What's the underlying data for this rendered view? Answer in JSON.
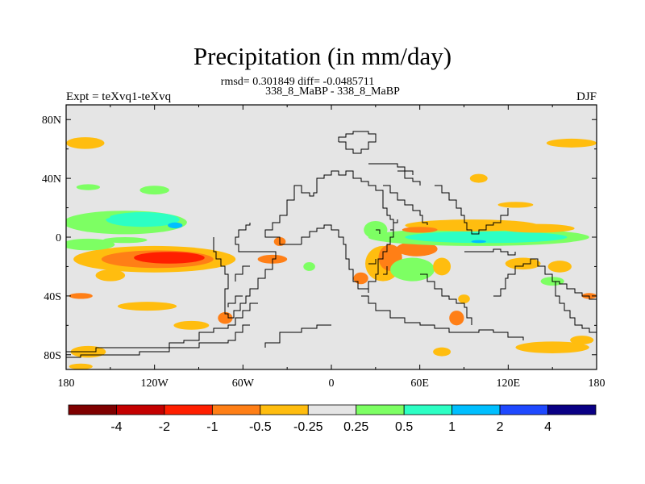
{
  "chart_data": {
    "type": "heatmap",
    "title": "Precipitation (in mm/day)",
    "stats_line": "rmsd= 0.301849 diff= -0.0485711",
    "runs_line": "338_8_MaBP - 338_8_MaBP",
    "left_label": "Expt = teXvq1-teXvq",
    "right_label": "DJF",
    "xlim": [
      -180,
      180
    ],
    "ylim": [
      -90,
      90
    ],
    "x_ticks": [
      {
        "value": -180,
        "label": "180"
      },
      {
        "value": -120,
        "label": "120W"
      },
      {
        "value": -60,
        "label": "60W"
      },
      {
        "value": 0,
        "label": "0"
      },
      {
        "value": 60,
        "label": "60E"
      },
      {
        "value": 120,
        "label": "120E"
      },
      {
        "value": 180,
        "label": "180"
      }
    ],
    "y_ticks": [
      {
        "value": 80,
        "label": "80N"
      },
      {
        "value": 40,
        "label": "40N"
      },
      {
        "value": 0,
        "label": "0"
      },
      {
        "value": -40,
        "label": "40S"
      },
      {
        "value": -80,
        "label": "80S"
      }
    ],
    "colorbar": {
      "colors": [
        "#7f0000",
        "#c40000",
        "#ff1f00",
        "#ff7f16",
        "#ffbd0f",
        "#e5e5e5",
        "#7dff63",
        "#2dffc4",
        "#00bfff",
        "#1f49ff",
        "#0a0085"
      ],
      "labels": [
        "-4",
        "-2",
        "-1",
        "-0.5",
        "-0.25",
        "0.25",
        "0.5",
        "1",
        "2",
        "4"
      ]
    },
    "background_color": "#e5e5e5",
    "anomaly_patches": [
      {
        "lon": -167,
        "lat": 64,
        "rx": 13,
        "ry": 4,
        "cls": 4
      },
      {
        "lon": 163,
        "lat": 64,
        "rx": 17,
        "ry": 3,
        "cls": 4
      },
      {
        "lon": -165,
        "lat": 34,
        "rx": 8,
        "ry": 2,
        "cls": 6
      },
      {
        "lon": -120,
        "lat": 32,
        "rx": 10,
        "ry": 3,
        "cls": 6
      },
      {
        "lon": 100,
        "lat": 40,
        "rx": 6,
        "ry": 3,
        "cls": 4
      },
      {
        "lon": 125,
        "lat": 22,
        "rx": 12,
        "ry": 2,
        "cls": 4
      },
      {
        "lon": -140,
        "lat": 10,
        "rx": 42,
        "ry": 8,
        "cls": 6
      },
      {
        "lon": -128,
        "lat": 12,
        "rx": 25,
        "ry": 5,
        "cls": 7
      },
      {
        "lon": -106,
        "lat": 8,
        "rx": 5,
        "ry": 2,
        "cls": 8
      },
      {
        "lon": -158,
        "lat": 14,
        "rx": 8,
        "ry": 2,
        "cls": 6
      },
      {
        "lon": -120,
        "lat": -15,
        "rx": 55,
        "ry": 9,
        "cls": 4
      },
      {
        "lon": -118,
        "lat": -15,
        "rx": 38,
        "ry": 6,
        "cls": 3
      },
      {
        "lon": -110,
        "lat": -14,
        "rx": 24,
        "ry": 4,
        "cls": 2
      },
      {
        "lon": -165,
        "lat": -5,
        "rx": 18,
        "ry": 4,
        "cls": 6
      },
      {
        "lon": -140,
        "lat": -2,
        "rx": 15,
        "ry": 2,
        "cls": 6
      },
      {
        "lon": -150,
        "lat": -26,
        "rx": 10,
        "ry": 4,
        "cls": 4
      },
      {
        "lon": -170,
        "lat": -40,
        "rx": 8,
        "ry": 2,
        "cls": 3
      },
      {
        "lon": -125,
        "lat": -47,
        "rx": 20,
        "ry": 3,
        "cls": 4
      },
      {
        "lon": -95,
        "lat": -60,
        "rx": 12,
        "ry": 3,
        "cls": 4
      },
      {
        "lon": -72,
        "lat": -55,
        "rx": 5,
        "ry": 4,
        "cls": 3
      },
      {
        "lon": -40,
        "lat": -15,
        "rx": 10,
        "ry": 3,
        "cls": 3
      },
      {
        "lon": -35,
        "lat": -3,
        "rx": 4,
        "ry": 3,
        "cls": 3
      },
      {
        "lon": -15,
        "lat": -20,
        "rx": 4,
        "ry": 3,
        "cls": 6
      },
      {
        "lon": 30,
        "lat": 5,
        "rx": 8,
        "ry": 6,
        "cls": 6
      },
      {
        "lon": 35,
        "lat": -18,
        "rx": 12,
        "ry": 12,
        "cls": 4
      },
      {
        "lon": 40,
        "lat": -14,
        "rx": 8,
        "ry": 9,
        "cls": 3
      },
      {
        "lon": 20,
        "lat": -28,
        "rx": 5,
        "ry": 4,
        "cls": 3
      },
      {
        "lon": 58,
        "lat": -8,
        "rx": 14,
        "ry": 5,
        "cls": 3
      },
      {
        "lon": 55,
        "lat": -22,
        "rx": 15,
        "ry": 8,
        "cls": 6
      },
      {
        "lon": 75,
        "lat": -20,
        "rx": 6,
        "ry": 6,
        "cls": 4
      },
      {
        "lon": 100,
        "lat": 0,
        "rx": 75,
        "ry": 6,
        "cls": 6
      },
      {
        "lon": 105,
        "lat": 0,
        "rx": 55,
        "ry": 4,
        "cls": 7
      },
      {
        "lon": 100,
        "lat": -3,
        "rx": 5,
        "ry": 1,
        "cls": 8
      },
      {
        "lon": 95,
        "lat": 8,
        "rx": 45,
        "ry": 4,
        "cls": 4
      },
      {
        "lon": 60,
        "lat": 5,
        "rx": 12,
        "ry": 2,
        "cls": 3
      },
      {
        "lon": 140,
        "lat": 6,
        "rx": 25,
        "ry": 3,
        "cls": 4
      },
      {
        "lon": 130,
        "lat": -18,
        "rx": 12,
        "ry": 4,
        "cls": 4
      },
      {
        "lon": 155,
        "lat": -20,
        "rx": 8,
        "ry": 4,
        "cls": 4
      },
      {
        "lon": 150,
        "lat": -30,
        "rx": 8,
        "ry": 3,
        "cls": 6
      },
      {
        "lon": 175,
        "lat": -40,
        "rx": 5,
        "ry": 2,
        "cls": 3
      },
      {
        "lon": 90,
        "lat": -42,
        "rx": 4,
        "ry": 3,
        "cls": 4
      },
      {
        "lon": 85,
        "lat": -55,
        "rx": 5,
        "ry": 5,
        "cls": 3
      },
      {
        "lon": 150,
        "lat": -75,
        "rx": 25,
        "ry": 4,
        "cls": 4
      },
      {
        "lon": 170,
        "lat": -70,
        "rx": 8,
        "ry": 3,
        "cls": 4
      },
      {
        "lon": -165,
        "lat": -78,
        "rx": 12,
        "ry": 4,
        "cls": 4
      },
      {
        "lon": -170,
        "lat": -88,
        "rx": 8,
        "ry": 2,
        "cls": 4
      },
      {
        "lon": 75,
        "lat": -78,
        "rx": 6,
        "ry": 3,
        "cls": 4
      }
    ],
    "coastlines": [
      [
        [
          -20,
          -5
        ],
        [
          -35,
          -5
        ],
        [
          -35,
          0
        ],
        [
          -45,
          0
        ],
        [
          -45,
          5
        ],
        [
          -40,
          10
        ],
        [
          -35,
          15
        ],
        [
          -30,
          25
        ],
        [
          -25,
          35
        ],
        [
          -20,
          30
        ],
        [
          -15,
          28
        ],
        [
          -12,
          30
        ],
        [
          -10,
          40
        ],
        [
          -5,
          42
        ],
        [
          0,
          45
        ],
        [
          5,
          42
        ],
        [
          10,
          45
        ],
        [
          15,
          40
        ],
        [
          20,
          40
        ],
        [
          20,
          38
        ],
        [
          25,
          35
        ],
        [
          30,
          32
        ],
        [
          35,
          30
        ],
        [
          35,
          25
        ],
        [
          35,
          20
        ],
        [
          38,
          15
        ],
        [
          40,
          12
        ],
        [
          42,
          8
        ],
        [
          42,
          0
        ],
        [
          40,
          -5
        ],
        [
          38,
          -10
        ],
        [
          35,
          -15
        ],
        [
          32,
          -25
        ],
        [
          30,
          -30
        ],
        [
          25,
          -35
        ],
        [
          20,
          -35
        ],
        [
          18,
          -30
        ],
        [
          15,
          -22
        ],
        [
          12,
          -15
        ],
        [
          10,
          -5
        ],
        [
          8,
          0
        ],
        [
          5,
          5
        ],
        [
          0,
          8
        ],
        [
          -5,
          6
        ],
        [
          -10,
          4
        ],
        [
          -15,
          0
        ],
        [
          -20,
          -5
        ]
      ],
      [
        [
          -40,
          -10
        ],
        [
          -60,
          -10
        ],
        [
          -63,
          -5
        ],
        [
          -65,
          0
        ],
        [
          -63,
          5
        ],
        [
          -58,
          8
        ],
        [
          -55,
          10
        ]
      ],
      [
        [
          -40,
          -10
        ],
        [
          -38,
          -15
        ],
        [
          -40,
          -22
        ],
        [
          -45,
          -28
        ],
        [
          -50,
          -35
        ],
        [
          -55,
          -40
        ],
        [
          -58,
          -45
        ],
        [
          -62,
          -50
        ],
        [
          -66,
          -55
        ],
        [
          -70,
          -52
        ],
        [
          -72,
          -45
        ],
        [
          -72,
          -35
        ],
        [
          -70,
          -25
        ],
        [
          -72,
          -20
        ],
        [
          -75,
          -15
        ],
        [
          -78,
          -10
        ],
        [
          -80,
          -5
        ],
        [
          -80,
          0
        ]
      ],
      [
        [
          -55,
          -20
        ],
        [
          -60,
          -25
        ],
        [
          -65,
          -30
        ]
      ],
      [
        [
          -50,
          -45
        ],
        [
          -55,
          -50
        ],
        [
          -60,
          -55
        ],
        [
          -65,
          -60
        ],
        [
          -70,
          -62
        ],
        [
          -80,
          -65
        ],
        [
          -90,
          -70
        ],
        [
          -100,
          -72
        ],
        [
          -110,
          -75
        ],
        [
          -120,
          -75
        ],
        [
          -140,
          -75
        ],
        [
          -160,
          -78
        ],
        [
          -180,
          -78
        ]
      ],
      [
        [
          -55,
          -60
        ],
        [
          -60,
          -65
        ],
        [
          -65,
          -70
        ],
        [
          -70,
          -72
        ],
        [
          -90,
          -75
        ],
        [
          -110,
          -78
        ],
        [
          -130,
          -80
        ],
        [
          -150,
          -80
        ],
        [
          -170,
          -82
        ],
        [
          -180,
          -82
        ]
      ],
      [
        [
          -60,
          -40
        ],
        [
          -65,
          -45
        ],
        [
          -70,
          -48
        ]
      ],
      [
        [
          0,
          -60
        ],
        [
          -10,
          -62
        ],
        [
          -20,
          -65
        ],
        [
          -35,
          -72
        ],
        [
          -45,
          -75
        ]
      ],
      [
        [
          5,
          65
        ],
        [
          10,
          60
        ],
        [
          15,
          57
        ],
        [
          20,
          60
        ],
        [
          25,
          65
        ],
        [
          30,
          70
        ],
        [
          25,
          72
        ],
        [
          15,
          70
        ],
        [
          10,
          68
        ],
        [
          5,
          65
        ]
      ],
      [
        [
          25,
          50
        ],
        [
          35,
          50
        ],
        [
          45,
          48
        ],
        [
          50,
          45
        ],
        [
          55,
          42
        ]
      ],
      [
        [
          35,
          35
        ],
        [
          40,
          30
        ],
        [
          45,
          25
        ],
        [
          50,
          22
        ],
        [
          55,
          18
        ],
        [
          60,
          15
        ],
        [
          62,
          10
        ],
        [
          65,
          8
        ]
      ],
      [
        [
          45,
          45
        ],
        [
          50,
          40
        ],
        [
          55,
          38
        ],
        [
          60,
          35
        ]
      ],
      [
        [
          70,
          35
        ],
        [
          75,
          30
        ],
        [
          80,
          25
        ],
        [
          85,
          20
        ],
        [
          88,
          15
        ],
        [
          90,
          10
        ],
        [
          92,
          5
        ],
        [
          95,
          2
        ],
        [
          100,
          5
        ],
        [
          105,
          8
        ],
        [
          110,
          10
        ],
        [
          115,
          15
        ],
        [
          120,
          20
        ]
      ],
      [
        [
          90,
          -10
        ],
        [
          100,
          -10
        ],
        [
          110,
          -8
        ],
        [
          115,
          -10
        ],
        [
          120,
          -12
        ],
        [
          125,
          -10
        ]
      ],
      [
        [
          25,
          -18
        ],
        [
          30,
          -15
        ]
      ],
      [
        [
          20,
          -35
        ],
        [
          25,
          -38
        ]
      ],
      [
        [
          35,
          -25
        ],
        [
          38,
          -20
        ]
      ],
      [
        [
          60,
          -25
        ],
        [
          65,
          -30
        ],
        [
          70,
          -35
        ],
        [
          75,
          -40
        ],
        [
          80,
          -42
        ],
        [
          85,
          -45
        ],
        [
          90,
          -48
        ],
        [
          92,
          -55
        ],
        [
          95,
          -60
        ]
      ],
      [
        [
          110,
          -40
        ],
        [
          115,
          -35
        ],
        [
          118,
          -28
        ],
        [
          120,
          -25
        ],
        [
          125,
          -20
        ],
        [
          130,
          -18
        ],
        [
          135,
          -15
        ],
        [
          140,
          -20
        ],
        [
          145,
          -25
        ],
        [
          150,
          -30
        ],
        [
          152,
          -40
        ],
        [
          155,
          -45
        ],
        [
          158,
          -50
        ],
        [
          162,
          -55
        ],
        [
          165,
          -60
        ],
        [
          170,
          -62
        ],
        [
          175,
          -65
        ],
        [
          180,
          -70
        ]
      ],
      [
        [
          150,
          -30
        ],
        [
          155,
          -32
        ],
        [
          160,
          -35
        ],
        [
          165,
          -38
        ],
        [
          170,
          -40
        ],
        [
          175,
          -42
        ],
        [
          180,
          -45
        ]
      ],
      [
        [
          20,
          -40
        ],
        [
          25,
          -45
        ],
        [
          30,
          -50
        ],
        [
          40,
          -55
        ],
        [
          50,
          -58
        ],
        [
          60,
          -60
        ],
        [
          70,
          -62
        ],
        [
          80,
          -65
        ],
        [
          90,
          -65
        ],
        [
          100,
          -63
        ],
        [
          110,
          -65
        ],
        [
          120,
          -68
        ],
        [
          130,
          -70
        ]
      ],
      [
        [
          40,
          5
        ],
        [
          42,
          10
        ],
        [
          45,
          12
        ]
      ],
      [
        [
          30,
          5
        ],
        [
          33,
          2
        ]
      ]
    ]
  }
}
